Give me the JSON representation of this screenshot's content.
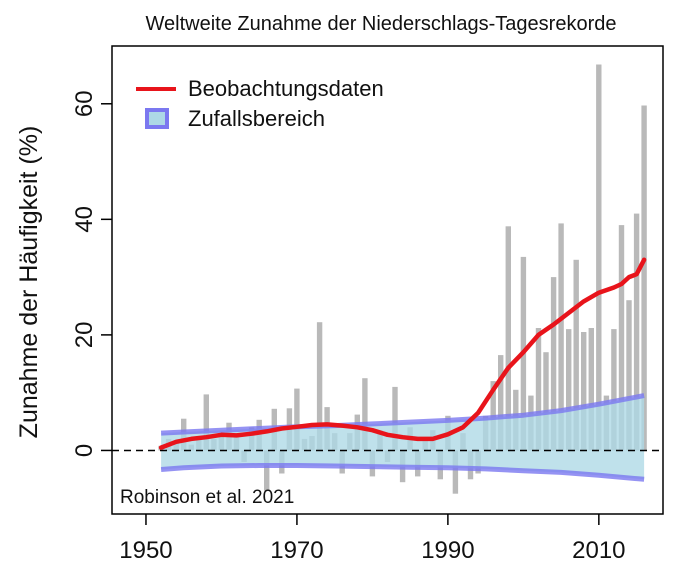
{
  "chart_data": {
    "type": "bar",
    "title": "Weltweite Zunahme der Niederschlags-Tagesrekorde",
    "ylabel": "Zunahme der Häufigkeit (%)",
    "xlabel": "",
    "xlim": [
      1945.5,
      2018.5
    ],
    "ylim": [
      -11,
      70
    ],
    "x_ticks": [
      1950,
      1970,
      1990,
      2010
    ],
    "y_ticks": [
      0,
      20,
      40,
      60
    ],
    "grid": false,
    "legend_position": "top-left",
    "annotation": "Robinson et al. 2021",
    "colors": {
      "bars": "#b9b9b9",
      "observation_line": "#e8141b",
      "random_fill": "#add8e6",
      "random_band": "#7b78f0",
      "baseline": "#000000"
    },
    "series": [
      {
        "name": "Beobachtungsdaten",
        "kind": "smoothed-line",
        "x": [
          1952,
          1954,
          1956,
          1958,
          1960,
          1962,
          1964,
          1966,
          1968,
          1970,
          1972,
          1974,
          1976,
          1978,
          1980,
          1982,
          1984,
          1986,
          1988,
          1990,
          1992,
          1994,
          1996,
          1998,
          2000,
          2002,
          2004,
          2006,
          2008,
          2010,
          2012,
          2013,
          2014,
          2015,
          2016
        ],
        "values": [
          0.5,
          1.5,
          2.0,
          2.3,
          2.7,
          2.6,
          2.9,
          3.3,
          3.8,
          4.1,
          4.4,
          4.5,
          4.3,
          4.0,
          3.5,
          2.7,
          2.3,
          2.0,
          2.0,
          2.8,
          4.0,
          6.5,
          10.5,
          14.3,
          17.0,
          20.0,
          21.8,
          23.8,
          25.8,
          27.3,
          28.2,
          28.8,
          30.0,
          30.5,
          33.0
        ]
      },
      {
        "name": "Zufallsbereich",
        "kind": "band",
        "x": [
          1952,
          1955,
          1960,
          1965,
          1970,
          1975,
          1980,
          1985,
          1990,
          1995,
          2000,
          2005,
          2010,
          2016
        ],
        "upper": [
          3.0,
          3.2,
          3.5,
          3.8,
          4.1,
          4.3,
          4.6,
          4.9,
          5.2,
          5.6,
          6.1,
          6.9,
          8.0,
          9.5
        ],
        "lower": [
          -3.3,
          -3.0,
          -2.7,
          -2.6,
          -2.6,
          -2.7,
          -2.8,
          -2.9,
          -3.0,
          -3.2,
          -3.5,
          -3.8,
          -4.3,
          -5.0
        ]
      },
      {
        "name": "",
        "kind": "bars",
        "x": [
          1952,
          1953,
          1954,
          1955,
          1956,
          1957,
          1958,
          1959,
          1960,
          1961,
          1962,
          1963,
          1964,
          1965,
          1966,
          1967,
          1968,
          1969,
          1970,
          1971,
          1972,
          1973,
          1974,
          1975,
          1976,
          1977,
          1978,
          1979,
          1980,
          1981,
          1982,
          1983,
          1984,
          1985,
          1986,
          1987,
          1988,
          1989,
          1990,
          1991,
          1992,
          1993,
          1994,
          1995,
          1996,
          1997,
          1998,
          1999,
          2000,
          2001,
          2002,
          2003,
          2004,
          2005,
          2006,
          2007,
          2008,
          2009,
          2010,
          2011,
          2012,
          2013,
          2014,
          2015,
          2016
        ],
        "values": [
          0.8,
          2.0,
          1.5,
          5.5,
          1.0,
          2.5,
          9.7,
          2.0,
          3.0,
          4.8,
          2.8,
          -2.0,
          4.0,
          5.3,
          -7.0,
          7.2,
          -4.0,
          7.3,
          10.7,
          2.0,
          2.5,
          22.2,
          7.5,
          3.0,
          -4.0,
          3.0,
          6.2,
          12.5,
          -4.5,
          3.5,
          -2.0,
          11.0,
          -5.5,
          4.0,
          -4.5,
          2.0,
          3.5,
          -5.0,
          6.0,
          -7.5,
          3.0,
          -5.0,
          -4.0,
          6.0,
          12.0,
          16.5,
          38.8,
          10.5,
          33.5,
          9.5,
          21.2,
          17.0,
          30.0,
          39.3,
          21.0,
          33.0,
          20.5,
          21.2,
          66.8,
          9.5,
          21.0,
          39.0,
          26.0,
          41.0,
          59.7
        ]
      }
    ]
  }
}
